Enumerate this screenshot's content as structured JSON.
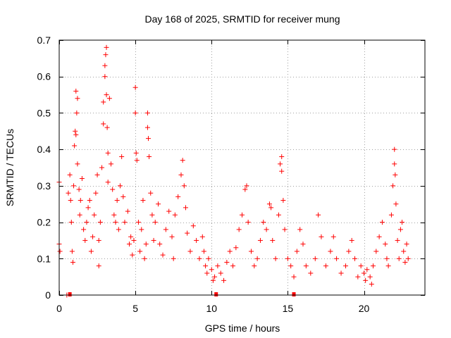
{
  "chart_data": {
    "type": "scatter",
    "title": "Day 168 of 2025, SRMTID for receiver mung",
    "xlabel": "GPS time / hours",
    "ylabel": "SRMTID / TECUs",
    "xlim": [
      0,
      24
    ],
    "ylim": [
      0,
      0.7
    ],
    "xticks": [
      0,
      5,
      10,
      15,
      20
    ],
    "yticks": [
      0,
      0.1,
      0.2,
      0.3,
      0.4,
      0.5,
      0.6,
      0.7
    ],
    "xtick_labels": [
      "0",
      "5",
      "10",
      "15",
      "20"
    ],
    "ytick_labels": [
      "0",
      "0.1",
      "0.2",
      "0.3",
      "0.4",
      "0.5",
      "0.6",
      "0.7"
    ],
    "grid": true,
    "marker": "+",
    "color": "#ff0000",
    "bottom_markers_x": [
      0.7,
      10.3,
      15.4
    ],
    "series": [
      {
        "name": "SRMTID",
        "points": [
          [
            0.0,
            0.31
          ],
          [
            0.0,
            0.14
          ],
          [
            0.05,
            0.12
          ],
          [
            0.5,
            0.0
          ],
          [
            0.6,
            0.28
          ],
          [
            0.7,
            0.33
          ],
          [
            0.75,
            0.26
          ],
          [
            0.8,
            0.2
          ],
          [
            0.85,
            0.12
          ],
          [
            0.9,
            0.09
          ],
          [
            0.95,
            0.3
          ],
          [
            1.0,
            0.41
          ],
          [
            1.05,
            0.45
          ],
          [
            1.1,
            0.44
          ],
          [
            1.1,
            0.56
          ],
          [
            1.15,
            0.5
          ],
          [
            1.2,
            0.54
          ],
          [
            1.2,
            0.36
          ],
          [
            1.3,
            0.29
          ],
          [
            1.35,
            0.22
          ],
          [
            1.4,
            0.26
          ],
          [
            1.5,
            0.32
          ],
          [
            1.6,
            0.18
          ],
          [
            1.7,
            0.15
          ],
          [
            1.8,
            0.2
          ],
          [
            1.9,
            0.24
          ],
          [
            2.0,
            0.26
          ],
          [
            2.1,
            0.12
          ],
          [
            2.2,
            0.16
          ],
          [
            2.3,
            0.22
          ],
          [
            2.4,
            0.28
          ],
          [
            2.5,
            0.33
          ],
          [
            2.6,
            0.15
          ],
          [
            2.6,
            0.08
          ],
          [
            2.7,
            0.2
          ],
          [
            2.8,
            0.35
          ],
          [
            2.9,
            0.47
          ],
          [
            2.9,
            0.53
          ],
          [
            3.0,
            0.6
          ],
          [
            3.0,
            0.63
          ],
          [
            3.05,
            0.66
          ],
          [
            3.1,
            0.68
          ],
          [
            3.1,
            0.55
          ],
          [
            3.15,
            0.46
          ],
          [
            3.2,
            0.39
          ],
          [
            3.2,
            0.31
          ],
          [
            3.3,
            0.54
          ],
          [
            3.4,
            0.36
          ],
          [
            3.5,
            0.29
          ],
          [
            3.6,
            0.22
          ],
          [
            3.7,
            0.2
          ],
          [
            3.8,
            0.26
          ],
          [
            3.9,
            0.18
          ],
          [
            4.0,
            0.3
          ],
          [
            4.1,
            0.38
          ],
          [
            4.2,
            0.27
          ],
          [
            4.3,
            0.2
          ],
          [
            4.5,
            0.23
          ],
          [
            4.6,
            0.14
          ],
          [
            4.7,
            0.16
          ],
          [
            4.8,
            0.11
          ],
          [
            4.9,
            0.15
          ],
          [
            5.0,
            0.57
          ],
          [
            5.0,
            0.5
          ],
          [
            5.05,
            0.39
          ],
          [
            5.1,
            0.37
          ],
          [
            5.2,
            0.2
          ],
          [
            5.3,
            0.12
          ],
          [
            5.4,
            0.18
          ],
          [
            5.5,
            0.26
          ],
          [
            5.6,
            0.1
          ],
          [
            5.7,
            0.14
          ],
          [
            5.8,
            0.46
          ],
          [
            5.8,
            0.5
          ],
          [
            5.85,
            0.43
          ],
          [
            5.9,
            0.38
          ],
          [
            6.0,
            0.28
          ],
          [
            6.1,
            0.22
          ],
          [
            6.2,
            0.15
          ],
          [
            6.3,
            0.2
          ],
          [
            6.5,
            0.25
          ],
          [
            6.6,
            0.14
          ],
          [
            6.8,
            0.11
          ],
          [
            7.0,
            0.18
          ],
          [
            7.2,
            0.23
          ],
          [
            7.4,
            0.16
          ],
          [
            7.5,
            0.1
          ],
          [
            7.6,
            0.22
          ],
          [
            7.8,
            0.27
          ],
          [
            8.0,
            0.33
          ],
          [
            8.1,
            0.37
          ],
          [
            8.2,
            0.3
          ],
          [
            8.3,
            0.24
          ],
          [
            8.4,
            0.17
          ],
          [
            8.6,
            0.12
          ],
          [
            8.8,
            0.19
          ],
          [
            9.0,
            0.15
          ],
          [
            9.2,
            0.1
          ],
          [
            9.4,
            0.16
          ],
          [
            9.5,
            0.12
          ],
          [
            9.6,
            0.08
          ],
          [
            9.7,
            0.06
          ],
          [
            9.8,
            0.1
          ],
          [
            10.0,
            0.07
          ],
          [
            10.1,
            0.04
          ],
          [
            10.2,
            0.05
          ],
          [
            10.4,
            0.08
          ],
          [
            10.6,
            0.06
          ],
          [
            10.8,
            0.04
          ],
          [
            11.0,
            0.09
          ],
          [
            11.2,
            0.12
          ],
          [
            11.4,
            0.08
          ],
          [
            11.6,
            0.13
          ],
          [
            11.8,
            0.18
          ],
          [
            12.0,
            0.22
          ],
          [
            12.2,
            0.29
          ],
          [
            12.3,
            0.3
          ],
          [
            12.4,
            0.2
          ],
          [
            12.6,
            0.12
          ],
          [
            12.8,
            0.08
          ],
          [
            13.0,
            0.1
          ],
          [
            13.2,
            0.15
          ],
          [
            13.4,
            0.2
          ],
          [
            13.6,
            0.18
          ],
          [
            13.8,
            0.25
          ],
          [
            13.9,
            0.24
          ],
          [
            14.0,
            0.15
          ],
          [
            14.2,
            0.1
          ],
          [
            14.4,
            0.22
          ],
          [
            14.5,
            0.36
          ],
          [
            14.6,
            0.38
          ],
          [
            14.6,
            0.34
          ],
          [
            14.7,
            0.26
          ],
          [
            14.8,
            0.18
          ],
          [
            15.0,
            0.1
          ],
          [
            15.2,
            0.08
          ],
          [
            15.4,
            0.05
          ],
          [
            15.6,
            0.12
          ],
          [
            15.8,
            0.18
          ],
          [
            16.0,
            0.14
          ],
          [
            16.2,
            0.08
          ],
          [
            16.5,
            0.06
          ],
          [
            16.8,
            0.1
          ],
          [
            17.0,
            0.22
          ],
          [
            17.2,
            0.16
          ],
          [
            17.5,
            0.08
          ],
          [
            17.8,
            0.12
          ],
          [
            18.0,
            0.16
          ],
          [
            18.2,
            0.1
          ],
          [
            18.5,
            0.06
          ],
          [
            18.8,
            0.08
          ],
          [
            19.0,
            0.12
          ],
          [
            19.2,
            0.15
          ],
          [
            19.4,
            0.1
          ],
          [
            19.6,
            0.05
          ],
          [
            19.8,
            0.08
          ],
          [
            20.0,
            0.06
          ],
          [
            20.1,
            0.04
          ],
          [
            20.2,
            0.07
          ],
          [
            20.4,
            0.05
          ],
          [
            20.5,
            0.03
          ],
          [
            20.6,
            0.08
          ],
          [
            20.8,
            0.12
          ],
          [
            21.0,
            0.16
          ],
          [
            21.2,
            0.2
          ],
          [
            21.4,
            0.14
          ],
          [
            21.5,
            0.1
          ],
          [
            21.6,
            0.08
          ],
          [
            21.8,
            0.22
          ],
          [
            21.9,
            0.3
          ],
          [
            22.0,
            0.36
          ],
          [
            22.0,
            0.4
          ],
          [
            22.05,
            0.33
          ],
          [
            22.1,
            0.25
          ],
          [
            22.2,
            0.15
          ],
          [
            22.3,
            0.1
          ],
          [
            22.4,
            0.18
          ],
          [
            22.5,
            0.2
          ],
          [
            22.6,
            0.12
          ],
          [
            22.7,
            0.09
          ],
          [
            22.8,
            0.14
          ],
          [
            22.9,
            0.1
          ]
        ]
      }
    ]
  }
}
